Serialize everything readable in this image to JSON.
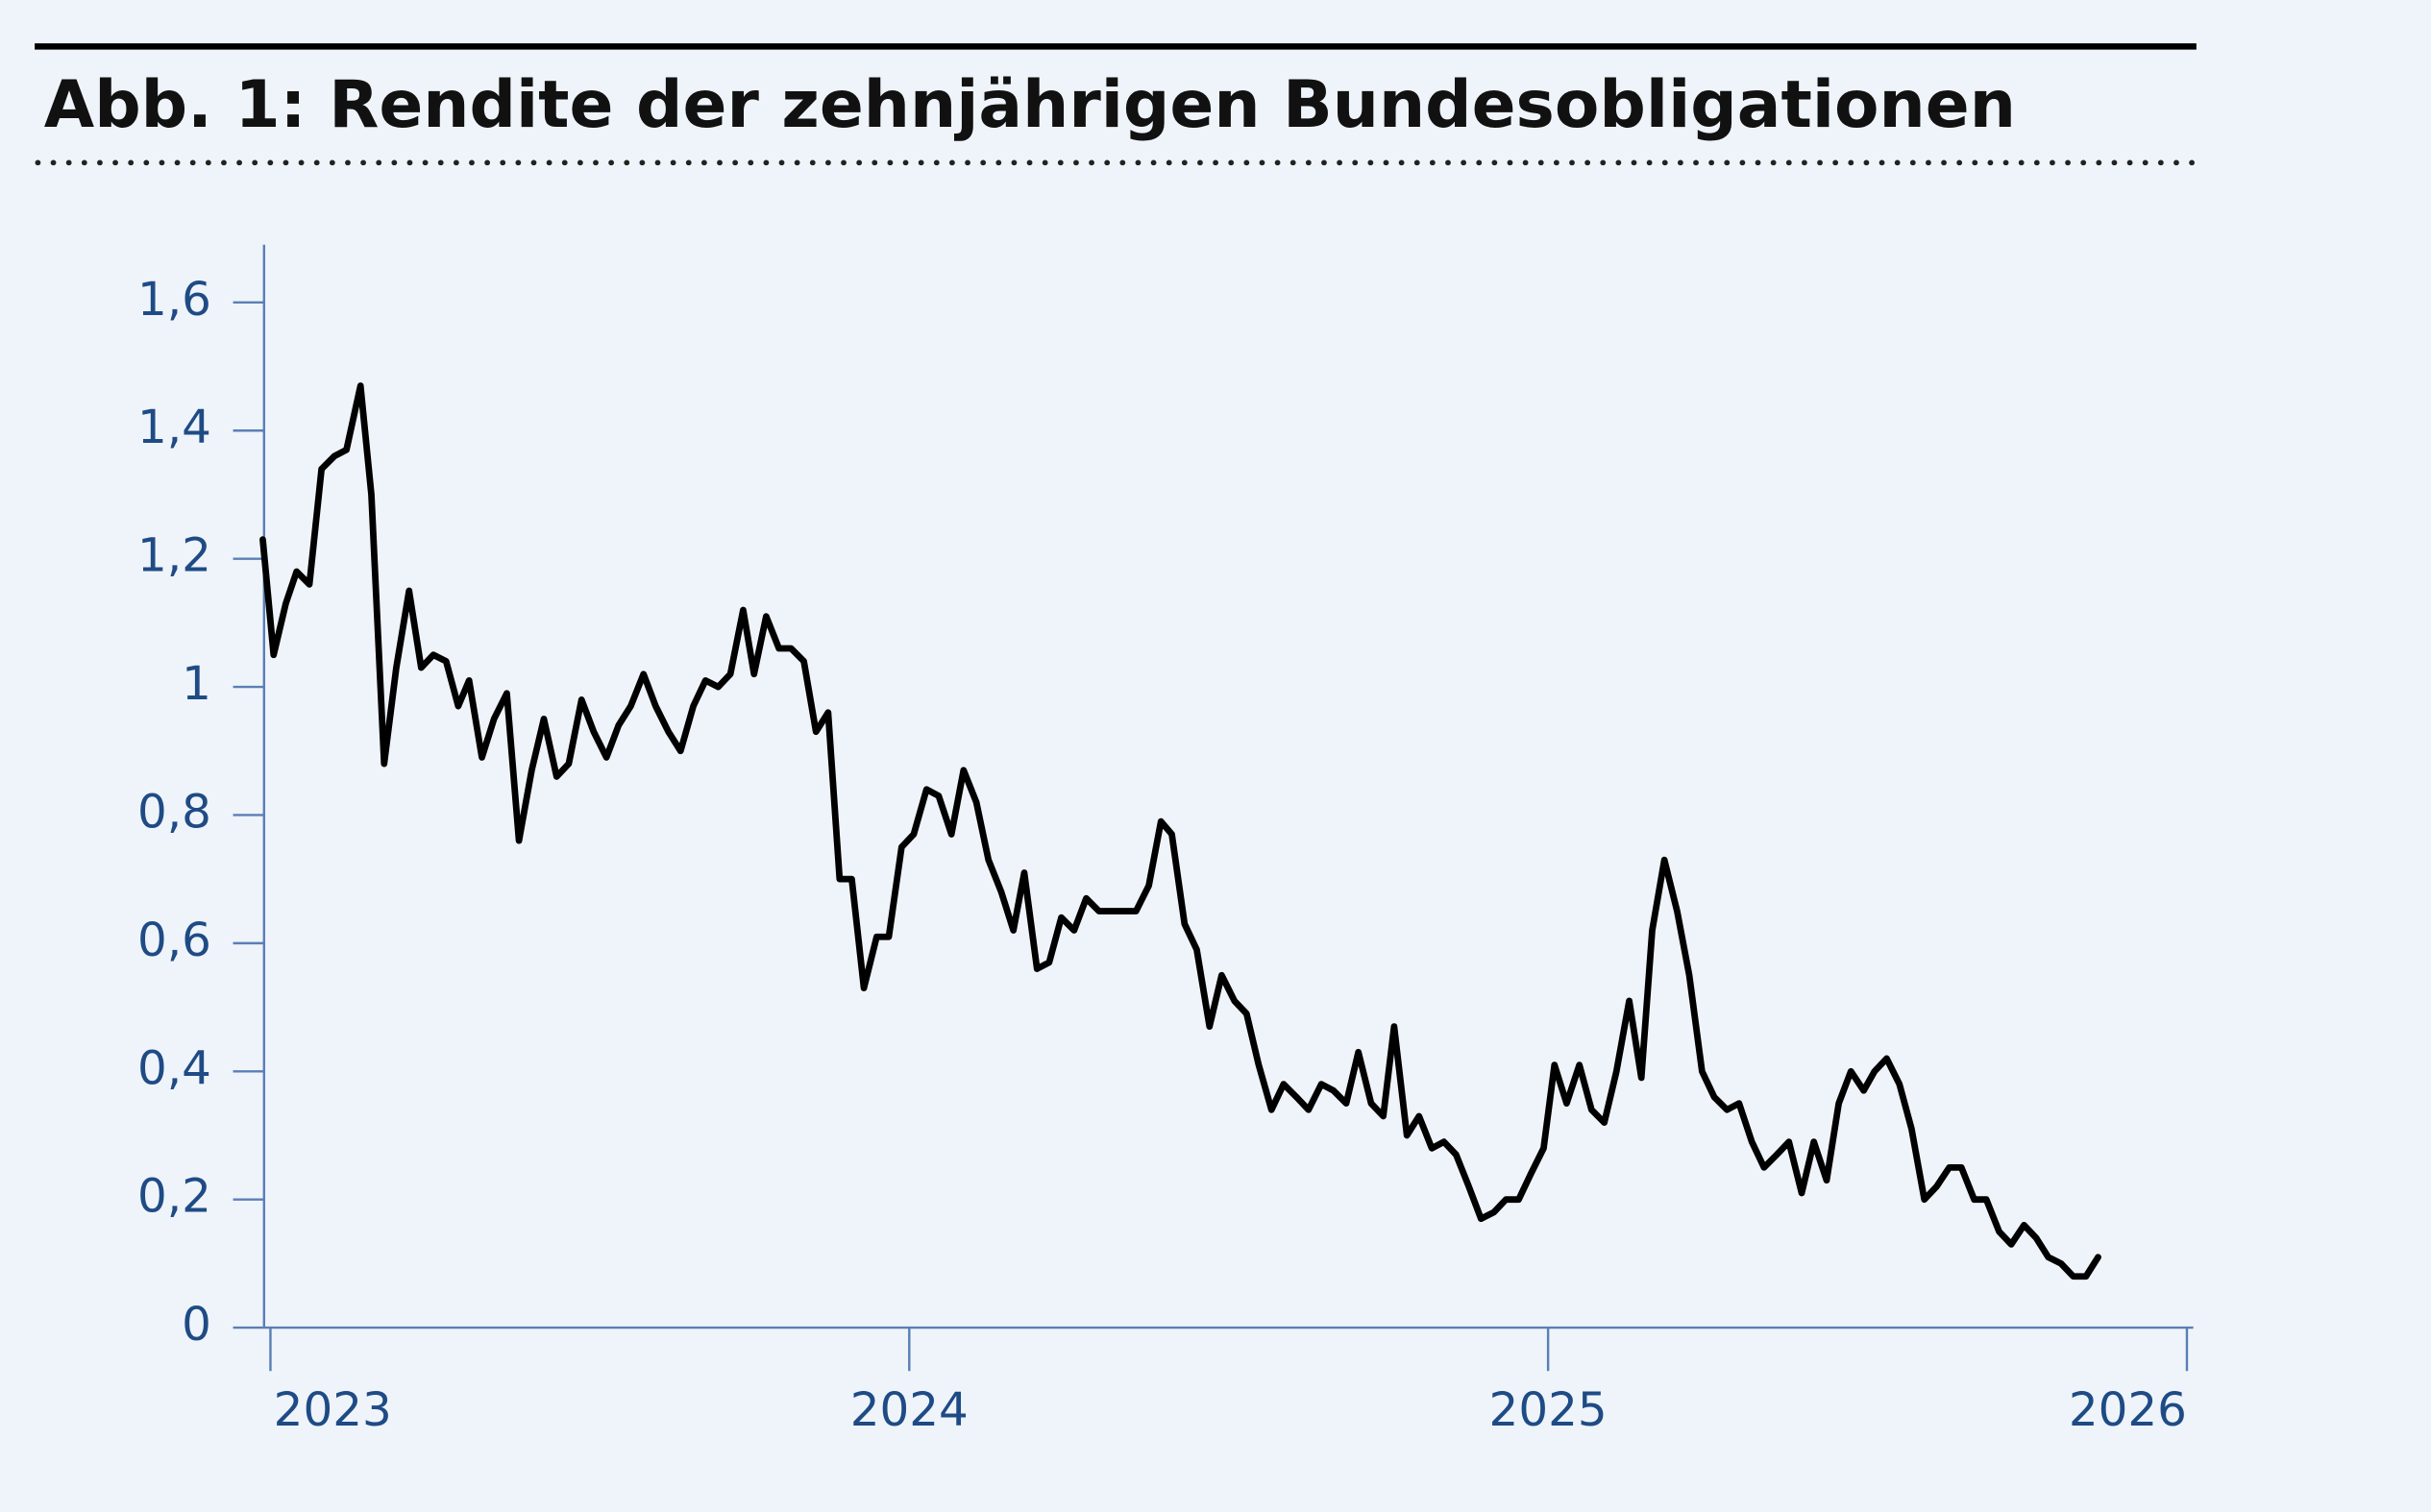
{
  "chart_data": {
    "type": "line",
    "title": "Abb. 1: Rendite der zehnjährigen Bundesobligationen",
    "x": [
      2022.988,
      2023.005,
      2023.024,
      2023.041,
      2023.061,
      2023.08,
      2023.1,
      2023.119,
      2023.141,
      2023.158,
      2023.178,
      2023.197,
      2023.217,
      2023.236,
      2023.255,
      2023.275,
      2023.294,
      2023.311,
      2023.331,
      2023.35,
      2023.37,
      2023.389,
      2023.409,
      2023.428,
      2023.448,
      2023.467,
      2023.487,
      2023.506,
      2023.526,
      2023.545,
      2023.564,
      2023.584,
      2023.603,
      2023.623,
      2023.642,
      2023.662,
      2023.681,
      2023.701,
      2023.72,
      2023.74,
      2023.757,
      2023.776,
      2023.796,
      2023.815,
      2023.835,
      2023.854,
      2023.873,
      2023.891,
      2023.91,
      2023.929,
      2023.949,
      2023.968,
      2023.988,
      2024.007,
      2024.027,
      2024.046,
      2024.066,
      2024.085,
      2024.105,
      2024.124,
      2024.144,
      2024.163,
      2024.18,
      2024.2,
      2024.219,
      2024.238,
      2024.258,
      2024.277,
      2024.297,
      2024.316,
      2024.336,
      2024.355,
      2024.375,
      2024.394,
      2024.411,
      2024.431,
      2024.45,
      2024.47,
      2024.489,
      2024.509,
      2024.528,
      2024.547,
      2024.567,
      2024.586,
      2024.606,
      2024.625,
      2024.645,
      2024.664,
      2024.684,
      2024.703,
      2024.723,
      2024.742,
      2024.759,
      2024.779,
      2024.798,
      2024.818,
      2024.837,
      2024.856,
      2024.876,
      2024.895,
      2024.915,
      2024.934,
      2024.954,
      2024.973,
      2024.993,
      2025.01,
      2025.029,
      2025.049,
      2025.068,
      2025.088,
      2025.107,
      2025.127,
      2025.146,
      2025.163,
      2025.182,
      2025.202,
      2025.221,
      2025.241,
      2025.26,
      2025.28,
      2025.299,
      2025.319,
      2025.338,
      2025.358,
      2025.377,
      2025.397,
      2025.416,
      2025.436,
      2025.455,
      2025.474,
      2025.494,
      2025.511,
      2025.53,
      2025.55,
      2025.569,
      2025.589,
      2025.608,
      2025.628,
      2025.647,
      2025.667,
      2025.686,
      2025.706,
      2025.725,
      2025.745,
      2025.764,
      2025.783,
      2025.803,
      2025.822,
      2025.842,
      2025.861
    ],
    "series": [
      {
        "color": "#000000",
        "values": [
          1.23,
          1.05,
          1.13,
          1.18,
          1.16,
          1.34,
          1.36,
          1.37,
          1.47,
          1.3,
          0.88,
          1.03,
          1.15,
          1.03,
          1.05,
          1.04,
          0.97,
          1.01,
          0.89,
          0.95,
          0.99,
          0.76,
          0.87,
          0.95,
          0.86,
          0.88,
          0.98,
          0.93,
          0.89,
          0.94,
          0.97,
          1.02,
          0.97,
          0.93,
          0.9,
          0.97,
          1.01,
          1.0,
          1.02,
          1.12,
          1.02,
          1.11,
          1.06,
          1.06,
          1.04,
          0.93,
          0.96,
          0.7,
          0.7,
          0.53,
          0.61,
          0.61,
          0.75,
          0.77,
          0.84,
          0.83,
          0.77,
          0.87,
          0.82,
          0.73,
          0.68,
          0.62,
          0.71,
          0.56,
          0.57,
          0.64,
          0.62,
          0.67,
          0.65,
          0.65,
          0.65,
          0.65,
          0.69,
          0.79,
          0.77,
          0.63,
          0.59,
          0.47,
          0.55,
          0.51,
          0.49,
          0.41,
          0.34,
          0.38,
          0.36,
          0.34,
          0.38,
          0.37,
          0.35,
          0.43,
          0.35,
          0.33,
          0.47,
          0.3,
          0.33,
          0.28,
          0.29,
          0.27,
          0.22,
          0.17,
          0.18,
          0.2,
          0.2,
          0.24,
          0.28,
          0.41,
          0.35,
          0.41,
          0.34,
          0.32,
          0.4,
          0.51,
          0.39,
          0.62,
          0.73,
          0.65,
          0.55,
          0.4,
          0.36,
          0.34,
          0.35,
          0.29,
          0.25,
          0.27,
          0.29,
          0.21,
          0.29,
          0.23,
          0.35,
          0.4,
          0.37,
          0.4,
          0.42,
          0.38,
          0.31,
          0.2,
          0.22,
          0.25,
          0.25,
          0.2,
          0.2,
          0.15,
          0.13,
          0.16,
          0.14,
          0.11,
          0.1,
          0.08,
          0.08,
          0.11
        ]
      }
    ],
    "xlim": [
      2022.99,
      2026.01
    ],
    "xticks": [
      2023,
      2024,
      2025,
      2026
    ],
    "ylim": [
      0,
      1.69
    ],
    "yticks": [
      0,
      {
        "value": 0.2,
        "label": "0,2"
      },
      {
        "value": 0.4,
        "label": "0,4"
      },
      {
        "value": 0.6,
        "label": "0,6"
      },
      {
        "value": 0.8,
        "label": "0,8"
      },
      1,
      {
        "value": 1.2,
        "label": "1,2"
      },
      {
        "value": 1.4,
        "label": "1,4"
      },
      {
        "value": 1.6,
        "label": "1,6"
      }
    ]
  }
}
